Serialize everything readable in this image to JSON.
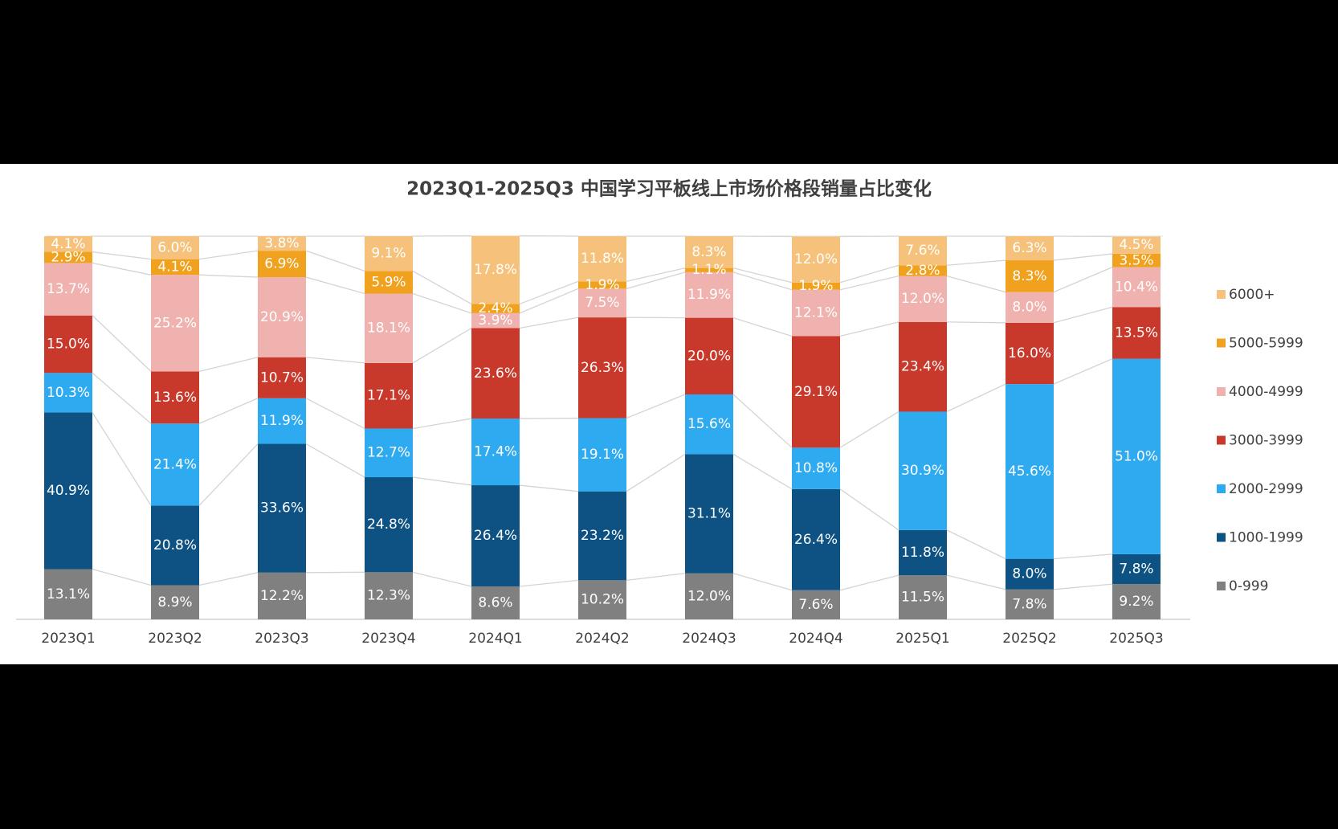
{
  "chart_data": {
    "type": "stacked_bar",
    "title": "2023Q1-2025Q3 中国学习平板线上市场价格段销量占比变化",
    "categories": [
      "2023Q1",
      "2023Q2",
      "2023Q3",
      "2023Q4",
      "2024Q1",
      "2024Q2",
      "2024Q3",
      "2024Q4",
      "2025Q1",
      "2025Q2",
      "2025Q3"
    ],
    "ylim": [
      0,
      100
    ],
    "legend": "right",
    "series": [
      {
        "name": "0-999",
        "color": "#808080",
        "values": [
          13.1,
          8.9,
          12.2,
          12.3,
          8.6,
          10.2,
          12.0,
          7.6,
          11.5,
          7.8,
          9.2
        ],
        "value_labels": [
          "13.1%",
          "8.9%",
          "12.2%",
          "12.3%",
          "8.6%",
          "10.2%",
          "12.0%",
          "7.6%",
          "11.5%",
          "7.8%",
          "9.2%"
        ]
      },
      {
        "name": "1000-1999",
        "color": "#0d5282",
        "values": [
          40.9,
          20.8,
          33.6,
          24.8,
          26.4,
          23.2,
          31.1,
          26.4,
          11.8,
          8.0,
          7.8
        ],
        "value_labels": [
          "40.9%",
          "20.8%",
          "33.6%",
          "24.8%",
          "26.4%",
          "23.2%",
          "31.1%",
          "26.4%",
          "11.8%",
          "8.0%",
          "7.8%"
        ]
      },
      {
        "name": "2000-2999",
        "color": "#2eaaf0",
        "values": [
          10.3,
          21.4,
          11.9,
          12.7,
          17.4,
          19.1,
          15.6,
          10.8,
          30.9,
          45.6,
          51.0
        ],
        "value_labels": [
          "10.3%",
          "21.4%",
          "11.9%",
          "12.7%",
          "17.4%",
          "19.1%",
          "15.6%",
          "10.8%",
          "30.9%",
          "45.6%",
          "51.0%"
        ]
      },
      {
        "name": "3000-3999",
        "color": "#c8392b",
        "values": [
          15.0,
          13.6,
          10.7,
          17.1,
          23.6,
          26.3,
          20.0,
          29.1,
          23.4,
          16.0,
          13.5
        ],
        "value_labels": [
          "15.0%",
          "13.6%",
          "10.7%",
          "17.1%",
          "23.6%",
          "26.3%",
          "20.0%",
          "29.1%",
          "23.4%",
          "16.0%",
          "13.5%"
        ]
      },
      {
        "name": "4000-4999",
        "color": "#efb2ae",
        "values": [
          13.7,
          25.2,
          20.9,
          18.1,
          3.9,
          7.5,
          11.9,
          12.1,
          12.0,
          8.0,
          10.4
        ],
        "value_labels": [
          "13.7%",
          "25.2%",
          "20.9%",
          "18.1%",
          "3.9%",
          "7.5%",
          "11.9%",
          "12.1%",
          "12.0%",
          "8.0%",
          "10.4%"
        ]
      },
      {
        "name": "5000-5999",
        "color": "#f0a11e",
        "values": [
          2.9,
          4.1,
          6.9,
          5.9,
          2.4,
          1.9,
          1.1,
          1.9,
          2.8,
          8.3,
          3.5
        ],
        "value_labels": [
          "2.9%",
          "4.1%",
          "6.9%",
          "5.9%",
          "2.4%",
          "1.9%",
          "1.1%",
          "1.9%",
          "2.8%",
          "8.3%",
          "3.5%"
        ]
      },
      {
        "name": "6000+",
        "color": "#f6c27b",
        "values": [
          4.1,
          6.0,
          3.8,
          9.1,
          17.8,
          11.8,
          8.3,
          12.0,
          7.6,
          6.3,
          4.5
        ],
        "value_labels": [
          "4.1%",
          "6.0%",
          "3.8%",
          "9.1%",
          "17.8%",
          "11.8%",
          "8.3%",
          "12.0%",
          "7.6%",
          "6.3%",
          "4.5%"
        ]
      }
    ]
  }
}
